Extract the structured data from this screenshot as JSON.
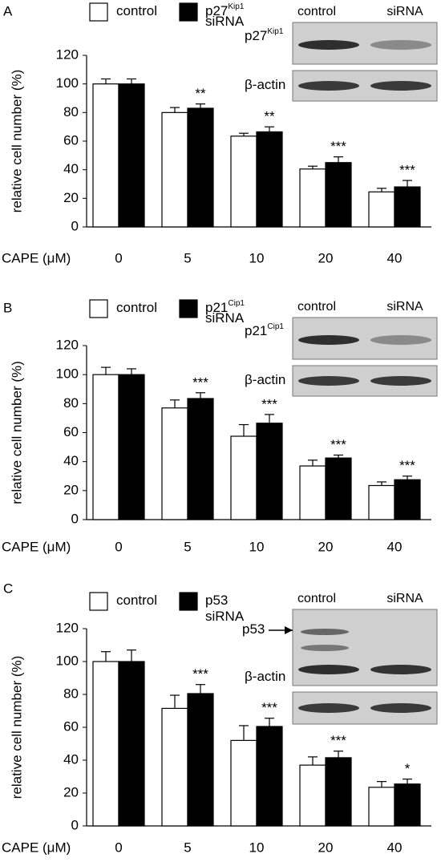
{
  "chart_data": [
    {
      "type": "bar",
      "panel_label": "A",
      "x_label": "CAPE (μM)",
      "y_label": "relative cell number (%)",
      "categories": [
        "0",
        "5",
        "10",
        "20",
        "40"
      ],
      "series": [
        {
          "name": "control",
          "color": "#ffffff",
          "values": [
            100,
            80,
            63.5,
            40.5,
            24.5
          ],
          "errors": [
            3.5,
            3.5,
            2,
            2,
            2.5
          ]
        },
        {
          "name": "p27Kip1 siRNA",
          "color": "#000000",
          "values": [
            100,
            83,
            66.5,
            45,
            28
          ],
          "errors": [
            3.5,
            3,
            3.5,
            4,
            4.5
          ],
          "annotations": [
            null,
            "**",
            "**",
            "***",
            "***"
          ]
        }
      ],
      "ylim": [
        0,
        120
      ],
      "yticks": [
        0,
        20,
        40,
        60,
        80,
        100,
        120
      ],
      "inset": {
        "lanes": [
          "control",
          "siRNA"
        ],
        "bands": [
          "p27Kip1",
          "β-actin"
        ]
      }
    },
    {
      "type": "bar",
      "panel_label": "B",
      "x_label": "CAPE (μM)",
      "y_label": "relative cell number (%)",
      "categories": [
        "0",
        "5",
        "10",
        "20",
        "40"
      ],
      "series": [
        {
          "name": "control",
          "color": "#ffffff",
          "values": [
            100,
            77,
            57.5,
            37,
            23.5
          ],
          "errors": [
            5,
            5.5,
            8,
            4,
            2.5
          ]
        },
        {
          "name": "p21Cip1 siRNA",
          "color": "#000000",
          "values": [
            100,
            83.5,
            66.5,
            42.5,
            27.5
          ],
          "errors": [
            4,
            4,
            6,
            2,
            2.5
          ],
          "annotations": [
            null,
            "***",
            "***",
            "***",
            "***"
          ]
        }
      ],
      "ylim": [
        0,
        120
      ],
      "yticks": [
        0,
        20,
        40,
        60,
        80,
        100,
        120
      ],
      "inset": {
        "lanes": [
          "control",
          "siRNA"
        ],
        "bands": [
          "p21Cip1",
          "β-actin"
        ]
      }
    },
    {
      "type": "bar",
      "panel_label": "C",
      "x_label": "CAPE (μM)",
      "y_label": "relative cell number (%)",
      "categories": [
        "0",
        "5",
        "10",
        "20",
        "40"
      ],
      "series": [
        {
          "name": "control",
          "color": "#ffffff",
          "values": [
            100,
            71.5,
            52,
            37,
            23.5
          ],
          "errors": [
            6,
            8,
            9,
            5,
            3.5
          ]
        },
        {
          "name": "p53 siRNA",
          "color": "#000000",
          "values": [
            100,
            80.5,
            60.5,
            41.5,
            25.5
          ],
          "errors": [
            7,
            5.5,
            5,
            4,
            3
          ],
          "annotations": [
            null,
            "***",
            "***",
            "***",
            "*"
          ]
        }
      ],
      "ylim": [
        0,
        120
      ],
      "yticks": [
        0,
        20,
        40,
        60,
        80,
        100,
        120
      ],
      "inset": {
        "lanes": [
          "control",
          "siRNA"
        ],
        "bands": [
          "p53",
          "β-actin"
        ]
      }
    }
  ]
}
